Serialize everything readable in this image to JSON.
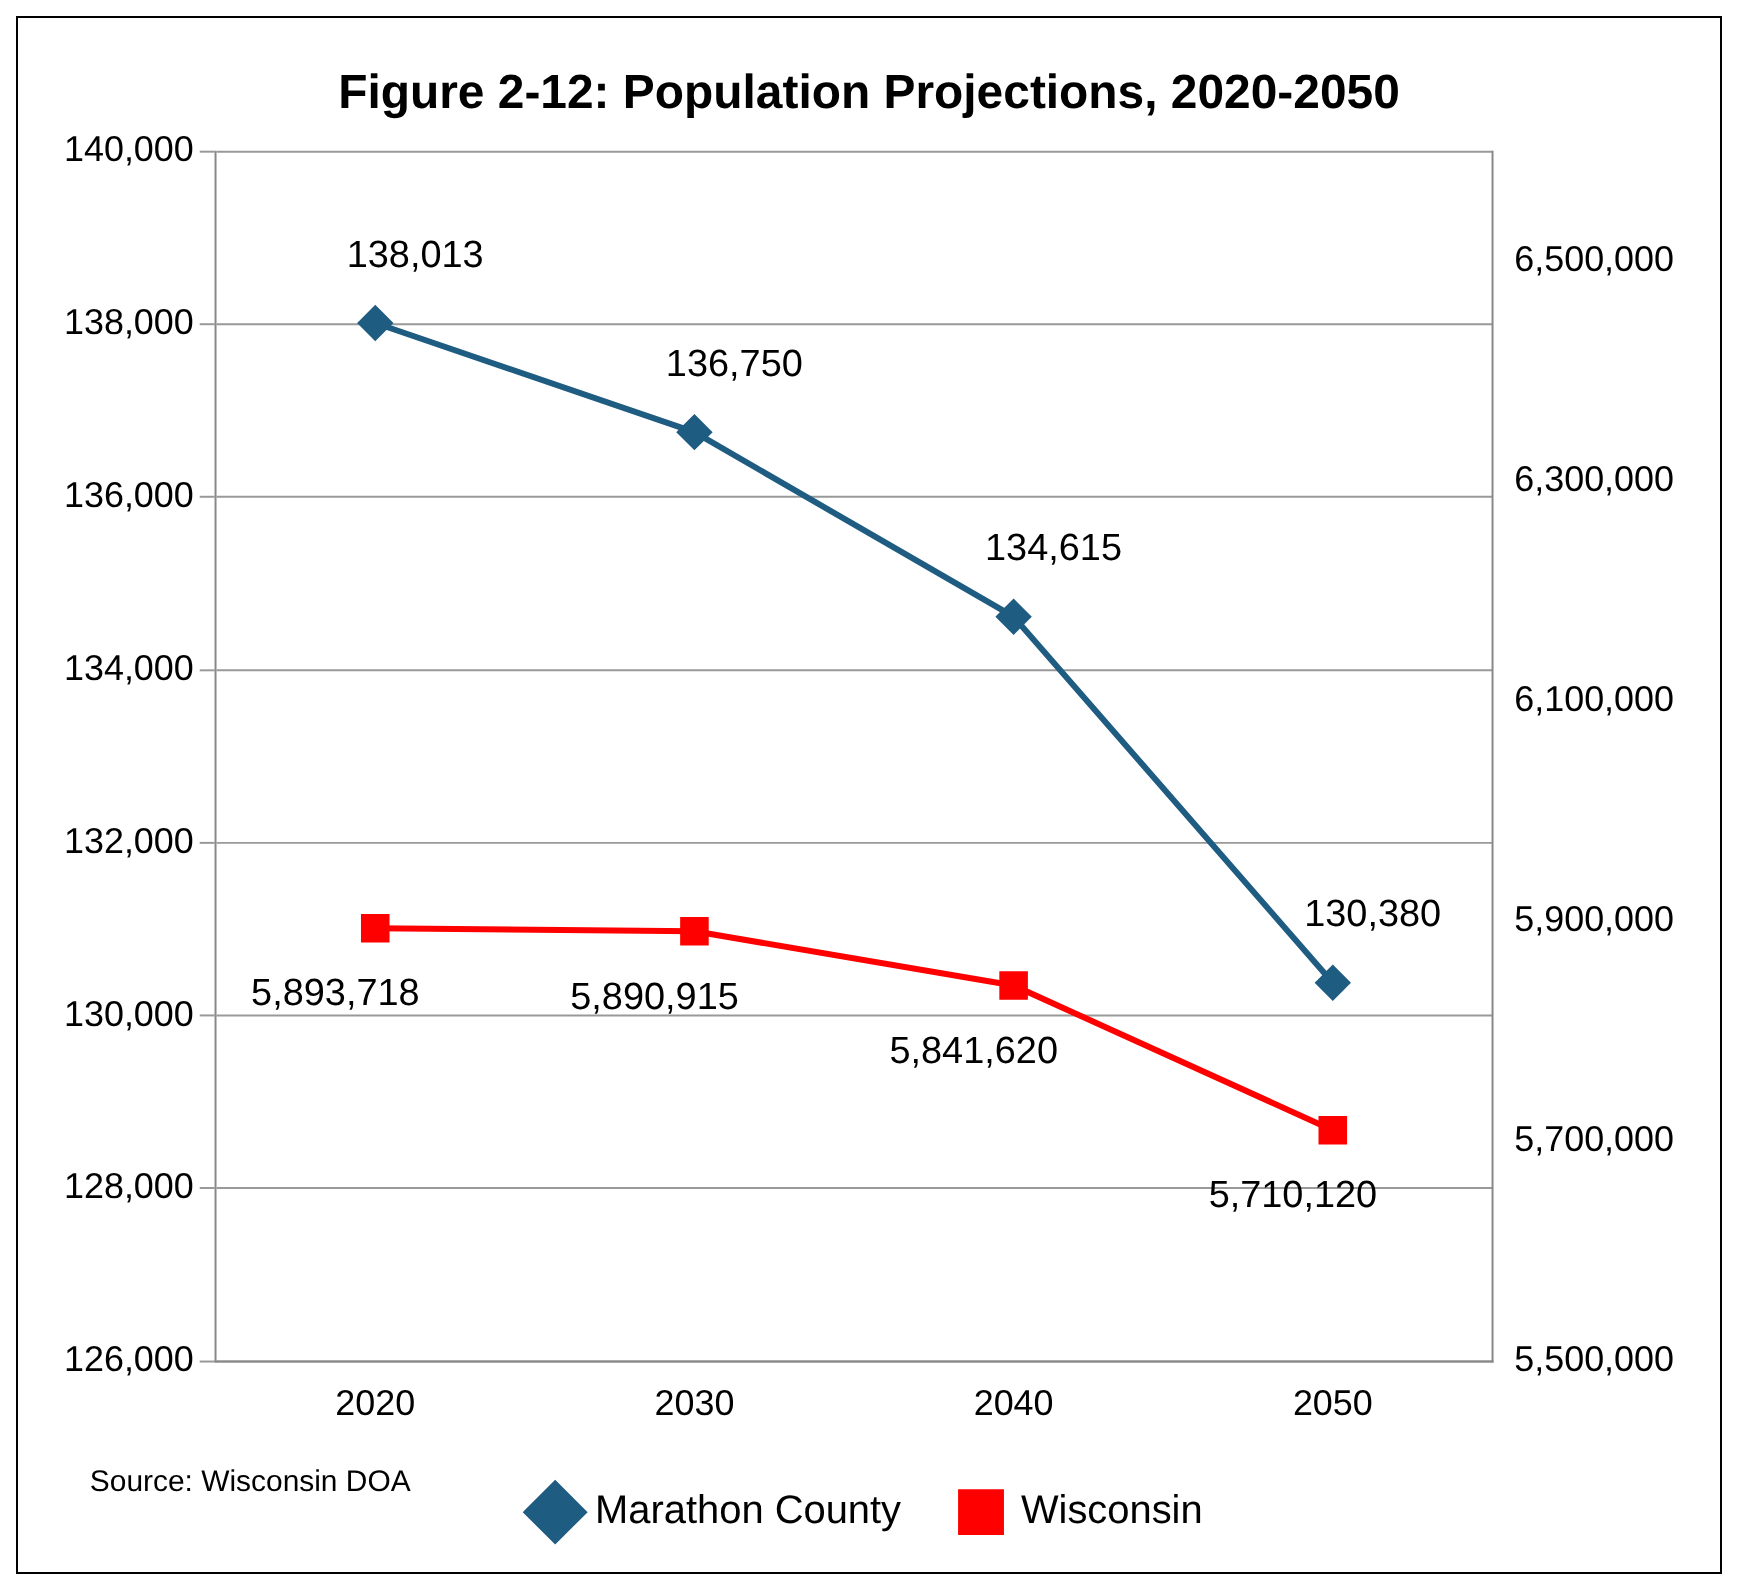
{
  "chart_data": {
    "type": "line",
    "title": "Figure 2-12: Population Projections, 2020-2050",
    "categories": [
      "2020",
      "2030",
      "2040",
      "2050"
    ],
    "series": [
      {
        "name": "Marathon County",
        "color": "#1f5c82",
        "values": [
          138013,
          136750,
          134615,
          130380
        ],
        "value_labels": [
          "138,013",
          "136,750",
          "134,615",
          "130,380"
        ],
        "marker": "diamond"
      },
      {
        "name": "Wisconsin",
        "color": "#ff0000",
        "values": [
          5893718,
          5890915,
          5841620,
          5710120
        ],
        "value_labels": [
          "5,893,718",
          "5,890,915",
          "5,841,620",
          "5,710,120"
        ],
        "axis": "y2",
        "marker": "square"
      }
    ],
    "ylim": [
      126000,
      140000
    ],
    "yticks": [
      {
        "value": 126000,
        "label": "126,000"
      },
      {
        "value": 128000,
        "label": "128,000"
      },
      {
        "value": 130000,
        "label": "130,000"
      },
      {
        "value": 132000,
        "label": "132,000"
      },
      {
        "value": 134000,
        "label": "134,000"
      },
      {
        "value": 136000,
        "label": "136,000"
      },
      {
        "value": 138000,
        "label": "138,000"
      },
      {
        "value": 140000,
        "label": "140,000"
      }
    ],
    "y2lim": [
      5500000,
      6600000
    ],
    "y2ticks": [
      {
        "value": 5500000,
        "label": "5,500,000"
      },
      {
        "value": 5700000,
        "label": "5,700,000"
      },
      {
        "value": 5900000,
        "label": "5,900,000"
      },
      {
        "value": 6100000,
        "label": "6,100,000"
      },
      {
        "value": 6300000,
        "label": "6,300,000"
      },
      {
        "value": 6500000,
        "label": "6,500,000"
      }
    ],
    "grid": "y",
    "legend": "bottom",
    "annotations": [
      "Source: Wisconsin DOA"
    ]
  }
}
